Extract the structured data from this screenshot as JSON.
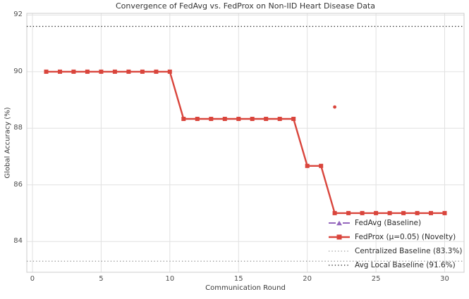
{
  "chart_data": {
    "type": "line",
    "title": "Convergence of FedAvg vs. FedProx on Non-IID Heart Disease Data",
    "xlabel": "Communication Round",
    "ylabel": "Global Accuracy (%)",
    "x": [
      1,
      2,
      3,
      4,
      5,
      6,
      7,
      8,
      9,
      10,
      11,
      12,
      13,
      14,
      15,
      16,
      17,
      18,
      19,
      20,
      21,
      22,
      23,
      24,
      25,
      26,
      27,
      28,
      29,
      30
    ],
    "x_ticks": [
      0,
      5,
      10,
      15,
      20,
      25,
      30
    ],
    "y_ticks": [
      84,
      86,
      88,
      90,
      92
    ],
    "xlim": [
      -0.41,
      31.41
    ],
    "ylim": [
      82.91,
      92.06
    ],
    "grid": true,
    "legend_position": "lower right",
    "series": [
      {
        "name": "FedAvg (Baseline)",
        "color": "#9467bd",
        "linestyle": "dashed",
        "marker": "triangle",
        "values": [
          90.0,
          90.0,
          90.0,
          90.0,
          90.0,
          90.0,
          90.0,
          90.0,
          90.0,
          90.0,
          88.33,
          88.33,
          88.33,
          88.33,
          88.33,
          88.33,
          88.33,
          88.33,
          88.33,
          86.67,
          86.67,
          85.0,
          85.0,
          85.0,
          85.0,
          85.0,
          85.0,
          85.0,
          85.0,
          85.0
        ]
      },
      {
        "name": "FedProx (μ=0.05) (Novelty)",
        "color": "#d9453c",
        "linestyle": "solid",
        "marker": "square",
        "values": [
          90.0,
          90.0,
          90.0,
          90.0,
          90.0,
          90.0,
          90.0,
          90.0,
          90.0,
          90.0,
          88.33,
          88.33,
          88.33,
          88.33,
          88.33,
          88.33,
          88.33,
          88.33,
          88.33,
          86.67,
          86.67,
          85.0,
          85.0,
          85.0,
          85.0,
          85.0,
          85.0,
          85.0,
          85.0,
          85.0
        ]
      },
      {
        "name": "Centralized Baseline (83.3%)",
        "color": "#999999",
        "linestyle": "dotted",
        "value": 83.3
      },
      {
        "name": "Avg Local Baseline (91.6%)",
        "color": "#1a1a1a",
        "linestyle": "dotted",
        "value": 91.6
      }
    ],
    "outlier_point": {
      "x": 22,
      "y": 88.75,
      "color": "#d9453c"
    }
  },
  "legend": {
    "items": [
      {
        "label": "FedAvg (Baseline)",
        "style": "dash-triangle",
        "color": "#9467bd"
      },
      {
        "label": "FedProx (μ=0.05) (Novelty)",
        "style": "solid-square",
        "color": "#d9453c"
      },
      {
        "label": "Centralized Baseline (83.3%)",
        "style": "dotted",
        "color": "#999999"
      },
      {
        "label": "Avg Local Baseline (91.6%)",
        "style": "dotted",
        "color": "#1a1a1a"
      }
    ]
  },
  "style": {
    "grid_color": "#e1e1e1",
    "spine_color": "#cccccc",
    "background": "#ffffff"
  }
}
